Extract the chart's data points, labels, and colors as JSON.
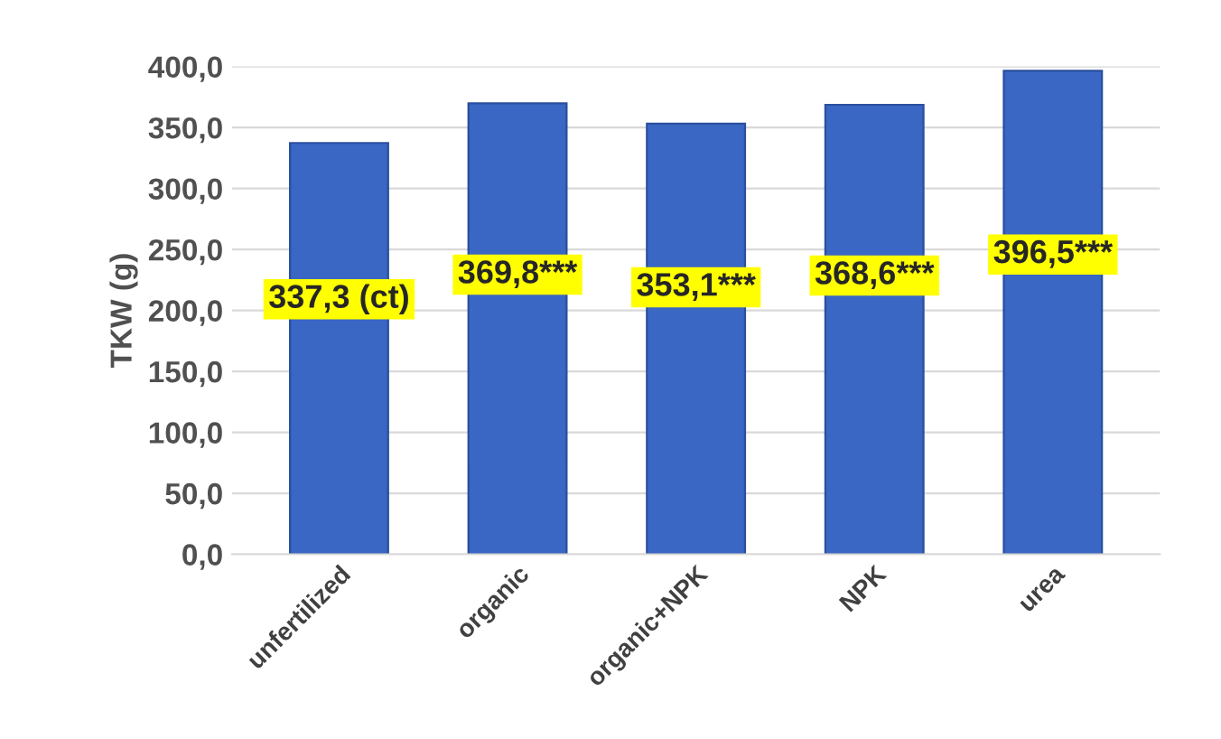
{
  "chart_data": {
    "type": "bar",
    "ylabel": "TKW (g)",
    "categories": [
      "unfertilized",
      "organic",
      "organic+NPK",
      "NPK",
      "urea"
    ],
    "values": [
      337.3,
      369.8,
      353.1,
      368.6,
      396.5
    ],
    "value_labels": [
      "337,3 (ct)",
      "369,8***",
      "353,1***",
      "368,6***",
      "396,5***"
    ],
    "color": "#3a66c4",
    "ylim": [
      0,
      400
    ],
    "yticks": [
      {
        "value": 0,
        "label": "0,0"
      },
      {
        "value": 50,
        "label": "50,0"
      },
      {
        "value": 100,
        "label": "100,0"
      },
      {
        "value": 150,
        "label": "150,0"
      },
      {
        "value": 200,
        "label": "200,0"
      },
      {
        "value": 250,
        "label": "250,0"
      },
      {
        "value": 300,
        "label": "300,0"
      },
      {
        "value": 350,
        "label": "350,0"
      },
      {
        "value": 400,
        "label": "400,0"
      }
    ],
    "grid": "y"
  }
}
